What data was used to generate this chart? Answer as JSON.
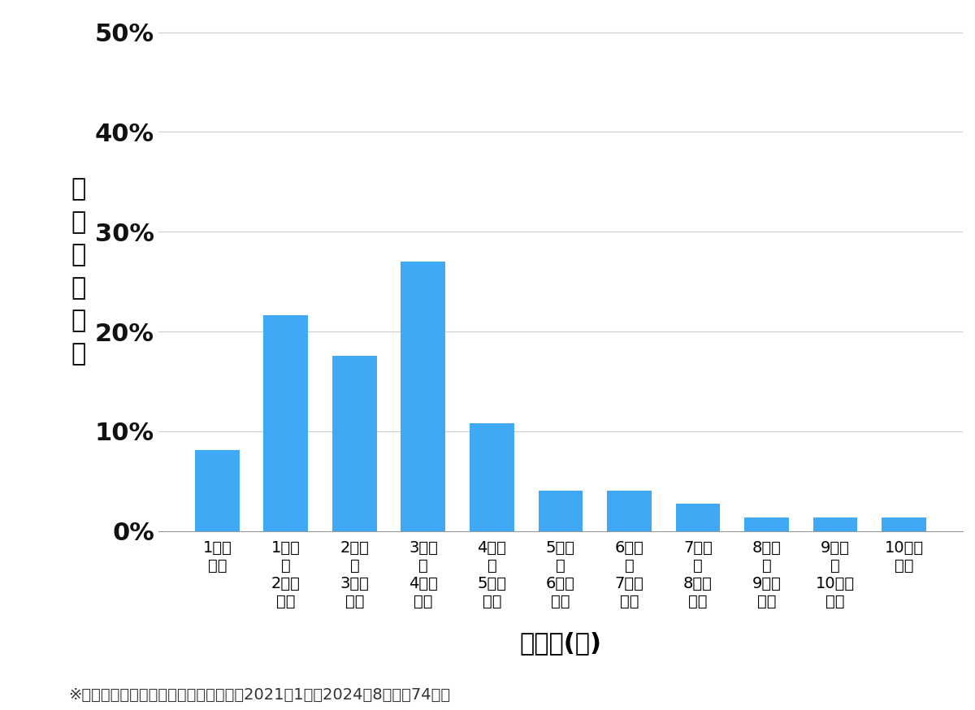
{
  "categories": [
    "1万円\n未満",
    "1万円\n～\n2万円\n未満",
    "2万円\n～\n3万円\n未満",
    "3万円\n～\n4万円\n未満",
    "4万円\n～\n5万円\n未満",
    "5万円\n～\n6万円\n未満",
    "6万円\n～\n7万円\n未満",
    "7万円\n～\n8万円\n未満",
    "8万円\n～\n9万円\n未満",
    "9万円\n～\n10万円\n未満",
    "10万円\n以上"
  ],
  "values": [
    8.108108,
    21.621622,
    17.567568,
    27.027027,
    10.810811,
    4.054054,
    4.054054,
    2.702703,
    1.351351,
    1.351351,
    1.351351
  ],
  "bar_color": "#3fa9f5",
  "ylabel_chars": "価格帯の割合",
  "xlabel": "価格帯(円)",
  "yticks": [
    0,
    10,
    20,
    30,
    40,
    50
  ],
  "ylim": [
    0,
    52
  ],
  "footnote": "※弾社受付の案件を対象に集計（期間：2021年1月～2024年8月、膇74件）",
  "background_color": "#ffffff",
  "grid_color": "#cccccc",
  "ytick_fontsize": 22,
  "xtick_fontsize": 14,
  "ylabel_fontsize": 22,
  "xlabel_fontsize": 22,
  "footnote_fontsize": 14
}
